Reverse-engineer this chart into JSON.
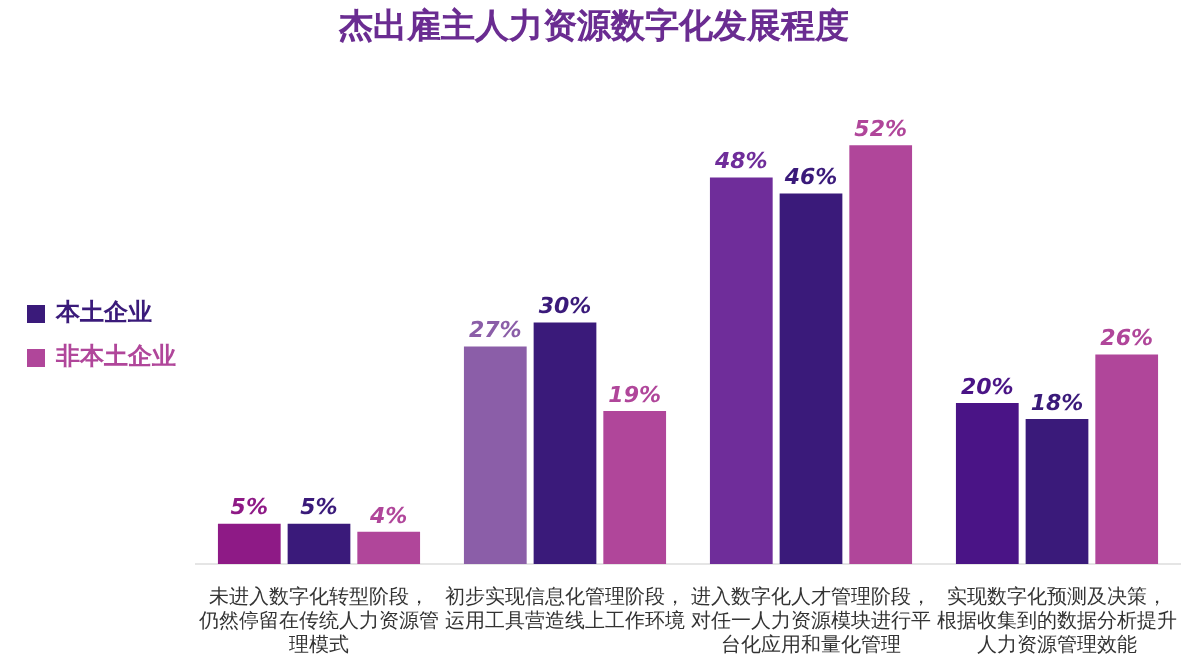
{
  "chart_data": {
    "type": "bar",
    "title": "杰出雇主人力资源数字化发展程度",
    "categories": [
      "未进入数字化转型阶段，仍然停留在传统人力资源管理模式",
      "初步实现信息化管理阶段，运用工具营造线上工作环境",
      "进入数字化人才管理阶段，对任一人力资源模块进行平台化应用和量化管理",
      "实现数字化预测及决策，根据收集到的数据分析提升人力资源管理效能"
    ],
    "series": [
      {
        "colors": [
          "#8e1a86",
          "#8b5ea8",
          "#6f2d9a",
          "#4a1486"
        ],
        "values": [
          5,
          27,
          48,
          20
        ],
        "value_labels": [
          "5%",
          "27%",
          "48%",
          "20%"
        ]
      },
      {
        "name": "本土企业",
        "color": "#3a1a7a",
        "values": [
          5,
          30,
          46,
          18
        ],
        "value_labels": [
          "5%",
          "30%",
          "46%",
          "18%"
        ]
      },
      {
        "name": "非本土企业",
        "color": "#b0469a",
        "values": [
          4,
          19,
          52,
          26
        ],
        "value_labels": [
          "4%",
          "19%",
          "52%",
          "26%"
        ]
      }
    ],
    "legend": "left",
    "grid": false,
    "tick_labels": "x"
  }
}
